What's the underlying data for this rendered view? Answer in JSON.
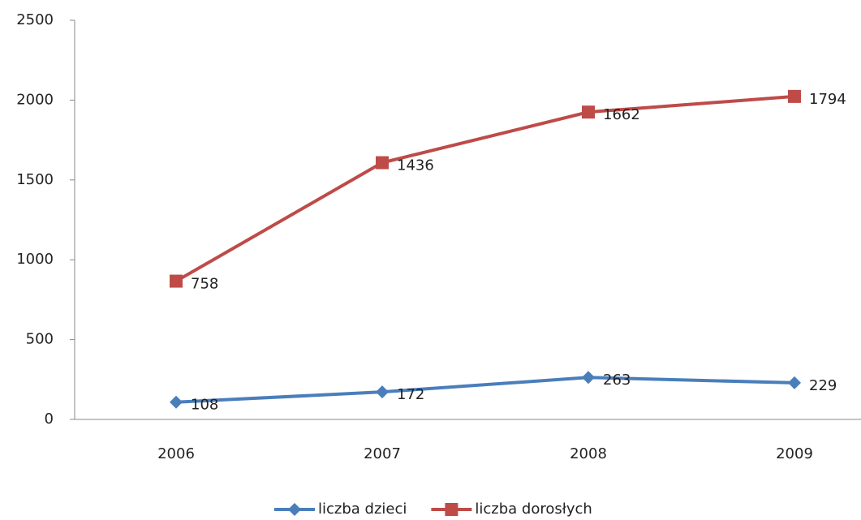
{
  "chart_data": {
    "type": "line",
    "stacked": true,
    "categories": [
      "2006",
      "2007",
      "2008",
      "2009"
    ],
    "series": [
      {
        "name": "liczba dzieci",
        "color": "#4a7ebb",
        "marker": "diamond",
        "values": [
          108,
          172,
          263,
          229
        ]
      },
      {
        "name": "liczba dorosłych",
        "color": "#be4b48",
        "marker": "square",
        "values": [
          758,
          1436,
          1662,
          1794
        ]
      }
    ],
    "ylim": [
      0,
      2500
    ],
    "yticks": [
      0,
      500,
      1000,
      1500,
      2000,
      2500
    ],
    "grid": false,
    "legend": "bottom"
  }
}
